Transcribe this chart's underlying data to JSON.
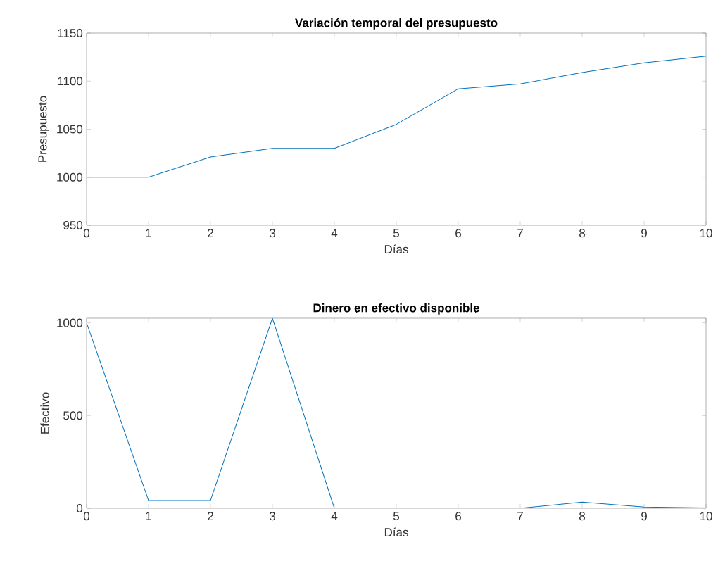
{
  "chart_data": [
    {
      "type": "line",
      "title": "Variación temporal del presupuesto",
      "xlabel": "Días",
      "ylabel": "Presupuesto",
      "x": [
        0,
        1,
        2,
        3,
        4,
        5,
        6,
        7,
        8,
        9,
        10
      ],
      "series": [
        {
          "color": "#0072bd",
          "values": [
            1000,
            1000,
            1021,
            1030,
            1030,
            1055,
            1092,
            1097,
            1109,
            1119,
            1126
          ]
        }
      ],
      "xlim": [
        0,
        10
      ],
      "xticks": [
        0,
        1,
        2,
        3,
        4,
        5,
        6,
        7,
        8,
        9,
        10
      ],
      "ylim": [
        950,
        1150
      ],
      "yticks": [
        950,
        1000,
        1050,
        1100,
        1150
      ]
    },
    {
      "type": "line",
      "title": "Dinero en efectivo disponible",
      "xlabel": "Días",
      "ylabel": "Efectivo",
      "x": [
        0,
        1,
        2,
        3,
        4,
        5,
        6,
        7,
        8,
        9,
        10
      ],
      "series": [
        {
          "color": "#0072bd",
          "values": [
            1000,
            42,
            42,
            1025,
            0,
            0,
            0,
            0,
            33,
            7,
            2
          ]
        }
      ],
      "xlim": [
        0,
        10
      ],
      "xticks": [
        0,
        1,
        2,
        3,
        4,
        5,
        6,
        7,
        8,
        9,
        10
      ],
      "ylim": [
        0,
        1025
      ],
      "yticks": [
        0,
        500,
        1000
      ]
    }
  ]
}
